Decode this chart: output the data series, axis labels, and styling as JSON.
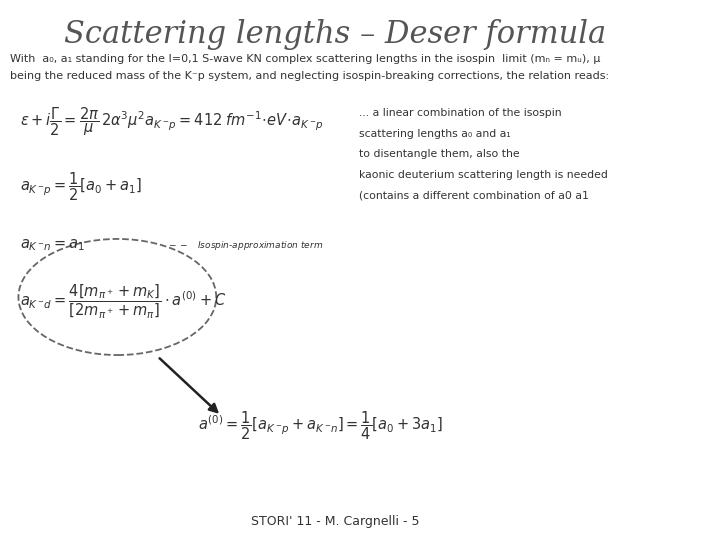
{
  "title": "Scattering lengths – Deser formula",
  "title_color": "#555555",
  "title_fontsize": 22,
  "bg_color": "#ffffff",
  "text_color": "#333333",
  "intro_text_line1": "With  a₀, a₁ standing for the I=0,1 S-wave KN complex scattering lengths in the isospin  limit (mₙ = mᵤ), μ",
  "intro_text_line2": "being the reduced mass of the K⁻p system, and neglecting isospin-breaking corrections, the relation reads:",
  "side_text_line1": "... a linear combination of the isospin",
  "side_text_line2": "scattering lengths a₀ and a₁",
  "side_text_line3": "to disentangle them, also the",
  "side_text_line4": "kaonic deuterium scattering length is needed",
  "side_text_line5": "(contains a different combination of a0 a1",
  "footer": "STORI' 11 - M. Cargnelli - 5"
}
